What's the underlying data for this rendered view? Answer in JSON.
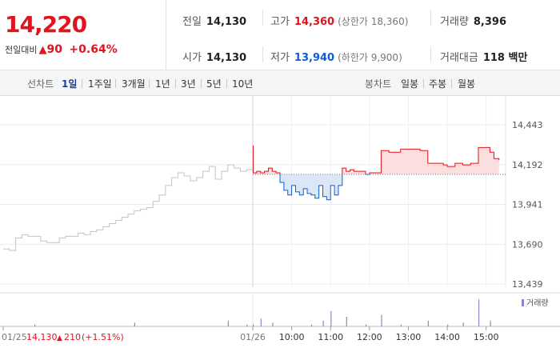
{
  "summary": {
    "price": "14,220",
    "change_label": "전일대비",
    "change_arrow": "▲",
    "change_points": "90",
    "change_pct": "+0.64%",
    "stats": {
      "prev_close": {
        "label": "전일",
        "value": "14,130"
      },
      "open": {
        "label": "시가",
        "value": "14,130"
      },
      "high": {
        "label": "고가",
        "value": "14,360",
        "sub": "(상한가 18,360)"
      },
      "low": {
        "label": "저가",
        "value": "13,940",
        "sub": "(하한가 9,900)"
      },
      "volume": {
        "label": "거래량",
        "value": "8,396"
      },
      "trade_value": {
        "label": "거래대금",
        "value": "118 백만"
      }
    }
  },
  "tabs": {
    "line_title": "선차트",
    "line_periods": [
      "1일",
      "1주일",
      "3개월",
      "1년",
      "3년",
      "5년",
      "10년"
    ],
    "active": "1일",
    "candle_title": "봉차트",
    "candle_periods": [
      "일봉",
      "주봉",
      "월봉"
    ]
  },
  "colors": {
    "up": "#e0141e",
    "down": "#0b5fd6",
    "prev_day": "#c4c4c4"
  },
  "chart_data": {
    "type": "line",
    "y_ticks": [
      "14,443",
      "14,192",
      "13,941",
      "13,690",
      "13,439"
    ],
    "ylim": [
      13439,
      14443
    ],
    "base_value": 14130,
    "x_ticks": [
      "01/26",
      "10:00",
      "11:00",
      "12:00",
      "13:00",
      "14:00",
      "15:00"
    ],
    "prev_day_annotation": {
      "date": "01/25",
      "close": "14,130",
      "arrow": "▲",
      "change": "210",
      "pct": "(+1.51%)"
    },
    "volume_legend": "거래량",
    "prev_day_series": [
      [
        0,
        13660
      ],
      [
        0.1,
        13650
      ],
      [
        0.2,
        13730
      ],
      [
        0.3,
        13750
      ],
      [
        0.4,
        13740
      ],
      [
        0.5,
        13740
      ],
      [
        0.6,
        13710
      ],
      [
        0.7,
        13700
      ],
      [
        0.8,
        13700
      ],
      [
        0.9,
        13730
      ],
      [
        1.0,
        13740
      ],
      [
        1.1,
        13740
      ],
      [
        1.2,
        13760
      ],
      [
        1.3,
        13750
      ],
      [
        1.4,
        13770
      ],
      [
        1.5,
        13780
      ],
      [
        1.6,
        13800
      ],
      [
        1.7,
        13820
      ],
      [
        1.8,
        13840
      ],
      [
        1.9,
        13860
      ],
      [
        2.0,
        13880
      ],
      [
        2.1,
        13900
      ],
      [
        2.2,
        13910
      ],
      [
        2.3,
        13920
      ],
      [
        2.4,
        13960
      ],
      [
        2.5,
        14000
      ],
      [
        2.6,
        14060
      ],
      [
        2.7,
        14110
      ],
      [
        2.8,
        14140
      ],
      [
        2.9,
        14120
      ],
      [
        3.0,
        14090
      ],
      [
        3.1,
        14110
      ],
      [
        3.2,
        14150
      ],
      [
        3.3,
        14180
      ],
      [
        3.4,
        14100
      ],
      [
        3.5,
        14150
      ],
      [
        3.6,
        14190
      ],
      [
        3.7,
        14170
      ],
      [
        3.8,
        14150
      ],
      [
        3.9,
        14160
      ],
      [
        4.0,
        14130
      ]
    ],
    "today_series": [
      [
        9.0,
        14310
      ],
      [
        9.01,
        14140
      ],
      [
        9.1,
        14150
      ],
      [
        9.2,
        14140
      ],
      [
        9.3,
        14150
      ],
      [
        9.4,
        14170
      ],
      [
        9.5,
        14150
      ],
      [
        9.6,
        14140
      ],
      [
        9.7,
        14080
      ],
      [
        9.8,
        14030
      ],
      [
        9.9,
        14000
      ],
      [
        10.0,
        14060
      ],
      [
        10.1,
        14020
      ],
      [
        10.2,
        14000
      ],
      [
        10.3,
        14040
      ],
      [
        10.4,
        14010
      ],
      [
        10.5,
        14000
      ],
      [
        10.6,
        13980
      ],
      [
        10.7,
        14060
      ],
      [
        10.8,
        13990
      ],
      [
        10.9,
        13970
      ],
      [
        11.0,
        14060
      ],
      [
        11.1,
        14000
      ],
      [
        11.2,
        14060
      ],
      [
        11.3,
        14170
      ],
      [
        11.4,
        14150
      ],
      [
        11.5,
        14160
      ],
      [
        11.6,
        14150
      ],
      [
        11.7,
        14150
      ],
      [
        11.8,
        14150
      ],
      [
        11.9,
        14130
      ],
      [
        12.0,
        14140
      ],
      [
        12.2,
        14140
      ],
      [
        12.3,
        14280
      ],
      [
        12.5,
        14270
      ],
      [
        12.8,
        14290
      ],
      [
        13.0,
        14290
      ],
      [
        13.3,
        14280
      ],
      [
        13.5,
        14200
      ],
      [
        13.7,
        14200
      ],
      [
        13.9,
        14190
      ],
      [
        14.0,
        14180
      ],
      [
        14.2,
        14200
      ],
      [
        14.4,
        14190
      ],
      [
        14.6,
        14200
      ],
      [
        14.8,
        14300
      ],
      [
        15.0,
        14300
      ],
      [
        15.1,
        14270
      ],
      [
        15.2,
        14230
      ],
      [
        15.33,
        14220
      ]
    ],
    "volume_bars": [
      [
        0.5,
        1
      ],
      [
        2.1,
        2
      ],
      [
        3.6,
        3
      ],
      [
        3.9,
        1
      ],
      [
        9.0,
        1
      ],
      [
        9.2,
        4
      ],
      [
        9.5,
        2
      ],
      [
        10.5,
        1
      ],
      [
        10.8,
        3
      ],
      [
        11.0,
        8
      ],
      [
        11.4,
        5
      ],
      [
        11.9,
        1
      ],
      [
        12.3,
        6
      ],
      [
        12.8,
        1
      ],
      [
        13.5,
        3
      ],
      [
        14.0,
        1
      ],
      [
        14.4,
        2
      ],
      [
        14.8,
        14
      ],
      [
        15.1,
        3
      ]
    ]
  }
}
